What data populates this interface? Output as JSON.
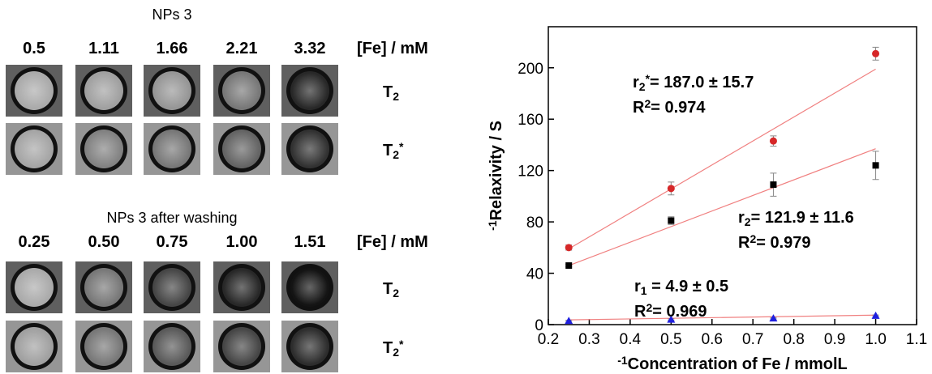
{
  "top": {
    "title": "NPs 3",
    "concentrations": [
      "0.5",
      "1.11",
      "1.66",
      "2.21",
      "3.32"
    ],
    "unit": "[Fe] / mM",
    "rows": [
      {
        "symbol": "T",
        "sub": "2"
      },
      {
        "symbol": "T",
        "sub": "2",
        "sup": "*"
      }
    ]
  },
  "bottom": {
    "title": "NPs 3 after washing",
    "concentrations": [
      "0.25",
      "0.50",
      "0.75",
      "1.00",
      "1.51"
    ],
    "unit": "[Fe] / mM",
    "rows": [
      {
        "symbol": "T",
        "sub": "2"
      },
      {
        "symbol": "T",
        "sub": "2",
        "sup": "*"
      }
    ]
  },
  "chart_data": {
    "type": "scatter",
    "x_label": {
      "text": "Concentration of Fe / mmolL",
      "sup": "-1"
    },
    "y_label": {
      "text": "Relaxivity / S",
      "sup": "-1"
    },
    "x": [
      0.25,
      0.5,
      0.75,
      1.0
    ],
    "series": [
      {
        "color": "#d62728",
        "marker": "circle",
        "values": [
          60,
          106,
          143,
          211
        ],
        "errors": [
          2,
          5,
          4,
          5
        ],
        "fit": [
          59,
          199
        ]
      },
      {
        "color": "#000000",
        "marker": "square",
        "values": [
          46,
          81,
          109,
          124
        ],
        "errors": [
          1,
          3,
          9,
          11
        ],
        "fit": [
          46,
          137
        ]
      },
      {
        "color": "#1f1fe0",
        "marker": "triangle",
        "values": [
          3,
          4,
          5,
          7
        ],
        "errors": [
          0.5,
          0.5,
          0.5,
          0.5
        ],
        "fit": [
          3.7,
          7.4
        ]
      }
    ],
    "fit_x": [
      0.25,
      1.0
    ],
    "fit_color": "#f08080",
    "annotations": [
      {
        "symbol": "r",
        "sub": "2",
        "sup": "*",
        "text": "= 187.0 ± 15.7"
      },
      {
        "symbol": "R",
        "sup": "2",
        "text": "= 0.974"
      },
      {
        "symbol": "r",
        "sub": "2",
        "text": "= 121.9 ± 11.6"
      },
      {
        "symbol": "R",
        "sup": "2",
        "text": "= 0.979"
      },
      {
        "symbol": "r",
        "sub": "1",
        "text": " = 4.9 ± 0.5"
      },
      {
        "symbol": "R",
        "sup": "2",
        "text": "= 0.969"
      }
    ],
    "xlim": [
      0.2,
      1.1
    ],
    "xticks": [
      0.2,
      0.3,
      0.4,
      0.5,
      0.6,
      0.7,
      0.8,
      0.9,
      {
        "value": 1,
        "label": "1.0"
      },
      1.1
    ],
    "ylim": [
      0,
      232
    ],
    "yticks": [
      0,
      40,
      80,
      120,
      160,
      200
    ]
  }
}
